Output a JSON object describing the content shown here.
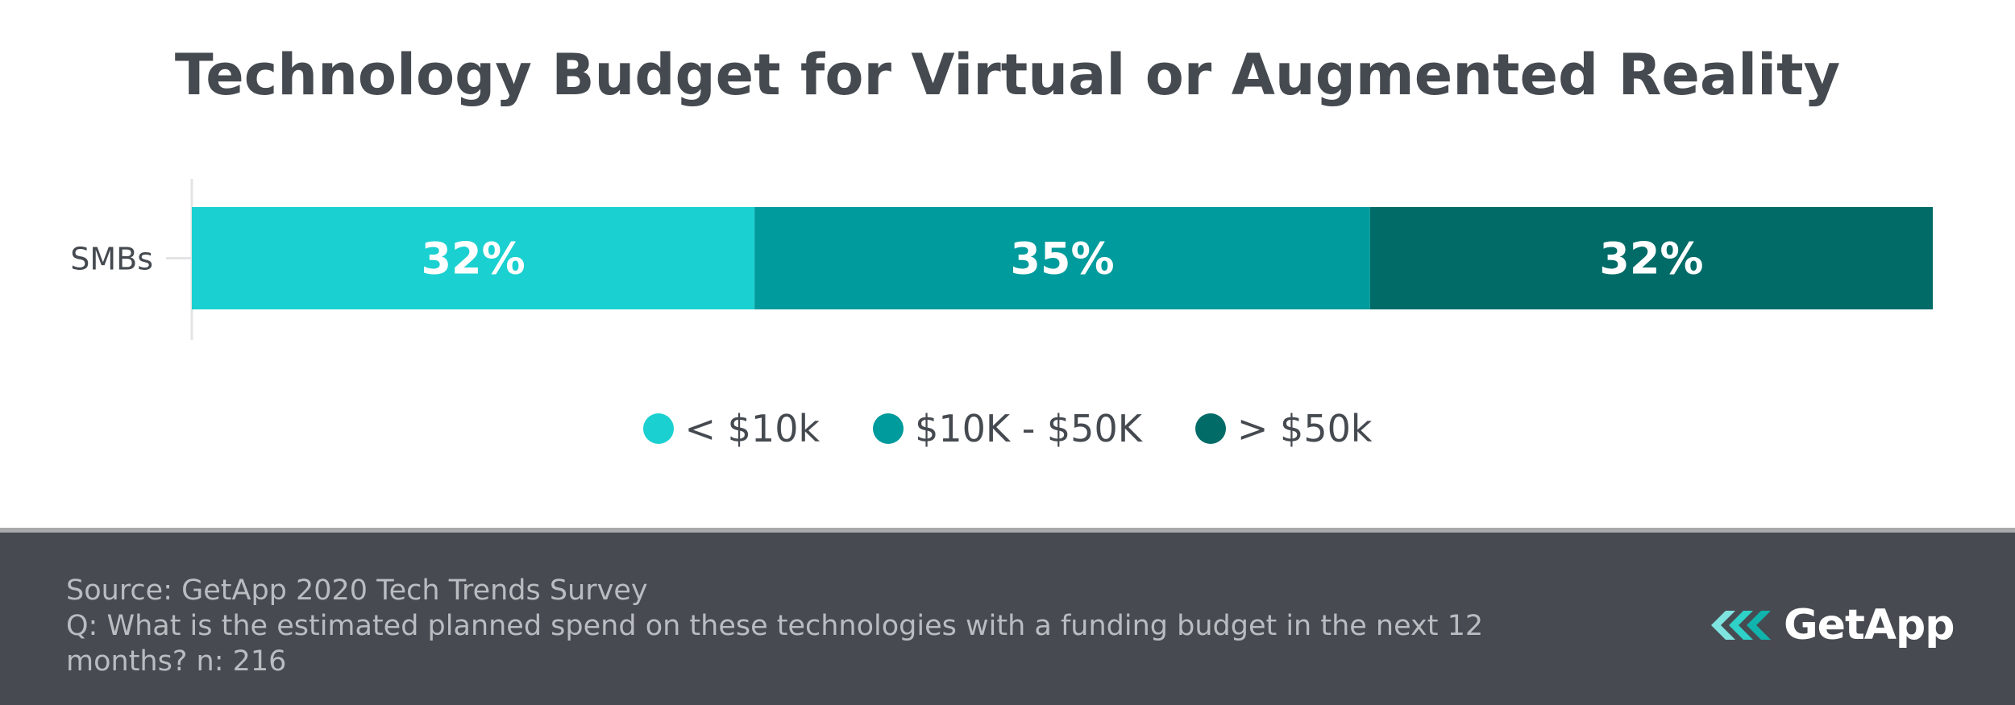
{
  "colors": {
    "title": "#454a50",
    "axis_label": "#454a50",
    "bar_label": "#ffffff",
    "series": [
      "#1ad0d0",
      "#009b9c",
      "#006b67"
    ],
    "footer_bg": "#474b51",
    "footer_text": "#b9bcc0"
  },
  "chart_data": {
    "type": "bar",
    "orientation": "horizontal",
    "stacked": true,
    "title": "Technology Budget for Virtual or Augmented Reality",
    "categories": [
      "SMBs"
    ],
    "series": [
      {
        "name": "< $10k",
        "values": [
          32
        ],
        "label": "32%"
      },
      {
        "name": "$10K - $50K",
        "values": [
          35
        ],
        "label": "35%"
      },
      {
        "name": "> $50k",
        "values": [
          32
        ],
        "label": "32%"
      }
    ],
    "xlim": [
      0,
      99
    ],
    "legend_position": "bottom-center",
    "grid": false
  },
  "footer": {
    "source": "Source: GetApp 2020 Tech Trends Survey",
    "question_line1": "Q: What is the estimated planned spend on these technologies with a funding budget in the next 12",
    "question_line2": "months? n: 216"
  },
  "logo": {
    "icon": "getapp-chevrons-icon",
    "text": "GetApp"
  }
}
